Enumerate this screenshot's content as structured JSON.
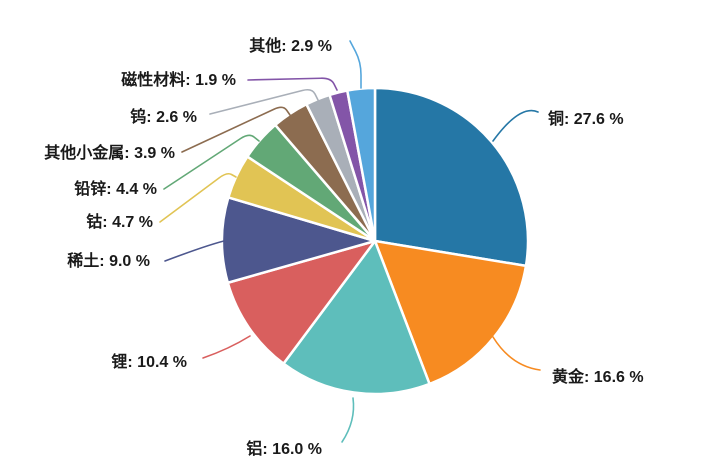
{
  "chart_data": {
    "type": "pie",
    "title": "",
    "unit": "%",
    "start_angle": "12-oclock",
    "direction": "clockwise",
    "background": "#FFFFFF",
    "legend": "none (direct labels with leader lines)",
    "label_text_color": "#1A1A1A",
    "slice_separator_color": "#FFFFFF",
    "slices": [
      {
        "name": "铜",
        "value": 27.6,
        "color": "#2577A6",
        "display": "铜: 27.6 %"
      },
      {
        "name": "黄金",
        "value": 16.6,
        "color": "#F78B21",
        "display": "黄金: 16.6 %"
      },
      {
        "name": "铝",
        "value": 16.0,
        "color": "#5EBEBB",
        "display": "铝: 16.0 %"
      },
      {
        "name": "锂",
        "value": 10.4,
        "color": "#D95F5E",
        "display": "锂: 10.4 %"
      },
      {
        "name": "稀土",
        "value": 9.0,
        "color": "#4D578E",
        "display": "稀土: 9.0 %"
      },
      {
        "name": "钴",
        "value": 4.7,
        "color": "#E1C454",
        "display": "钴: 4.7 %"
      },
      {
        "name": "铅锌",
        "value": 4.4,
        "color": "#62A876",
        "display": "铅锌: 4.4 %"
      },
      {
        "name": "其他小金属",
        "value": 3.9,
        "color": "#8C6C50",
        "display": "其他小金属: 3.9 %"
      },
      {
        "name": "钨",
        "value": 2.6,
        "color": "#A9AFB8",
        "display": "钨: 2.6 %"
      },
      {
        "name": "磁性材料",
        "value": 1.9,
        "color": "#8355A8",
        "display": "磁性材料: 1.9 %"
      },
      {
        "name": "其他",
        "value": 2.9,
        "color": "#55A6DC",
        "display": "其他: 2.9 %"
      }
    ]
  }
}
